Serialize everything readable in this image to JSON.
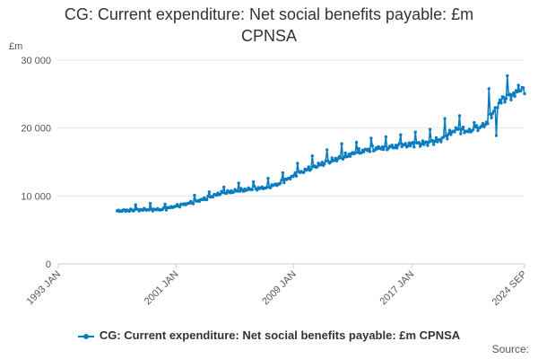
{
  "title_line1": "CG: Current expenditure: Net social benefits payable: £m",
  "title_line2": "CPNSA",
  "source_label": "Source:",
  "colors": {
    "series": "#0a7cc0",
    "grid": "#e6e6e6",
    "axis": "#cccccc"
  },
  "chart_data": {
    "type": "line",
    "ylabel": "£m",
    "ylim": [
      0,
      30000
    ],
    "yticks": [
      {
        "value": 0,
        "label": "0"
      },
      {
        "value": 10000,
        "label": "10 000"
      },
      {
        "value": 20000,
        "label": "20 000"
      },
      {
        "value": 30000,
        "label": "30 000"
      }
    ],
    "xlim": [
      "1993-01",
      "2024-09"
    ],
    "xticks": [
      {
        "value": "1993-01",
        "label": "1993 JAN"
      },
      {
        "value": "2001-01",
        "label": "2001 JAN"
      },
      {
        "value": "2009-01",
        "label": "2009 JAN"
      },
      {
        "value": "2017-01",
        "label": "2017 JAN"
      },
      {
        "value": "2024-09",
        "label": "2024 SEP"
      }
    ],
    "grid": true,
    "legend_position": "bottom",
    "series": [
      {
        "name": "CG: Current expenditure: Net social benefits payable: £m CPNSA",
        "anchors": [
          [
            "1997-01",
            7800
          ],
          [
            "1998-01",
            7900
          ],
          [
            "1999-01",
            8000
          ],
          [
            "2000-01",
            8000
          ],
          [
            "2001-01",
            8500
          ],
          [
            "2002-01",
            9000
          ],
          [
            "2003-01",
            9600
          ],
          [
            "2004-01",
            10400
          ],
          [
            "2005-01",
            10700
          ],
          [
            "2006-01",
            11000
          ],
          [
            "2007-01",
            11200
          ],
          [
            "2008-01",
            11800
          ],
          [
            "2009-01",
            13000
          ],
          [
            "2010-01",
            14000
          ],
          [
            "2011-01",
            14800
          ],
          [
            "2012-01",
            15500
          ],
          [
            "2013-01",
            16200
          ],
          [
            "2014-01",
            16800
          ],
          [
            "2015-01",
            17100
          ],
          [
            "2016-01",
            17300
          ],
          [
            "2017-01",
            17600
          ],
          [
            "2018-01",
            17800
          ],
          [
            "2019-01",
            18300
          ],
          [
            "2020-01",
            19800
          ],
          [
            "2021-01",
            19500
          ],
          [
            "2022-01",
            20500
          ],
          [
            "2023-01",
            24000
          ],
          [
            "2024-01",
            25000
          ],
          [
            "2024-09",
            25800
          ]
        ],
        "spikes": [
          [
            "1998-04",
            8700
          ],
          [
            "1999-04",
            8900
          ],
          [
            "2000-04",
            8800
          ],
          [
            "2002-04",
            10100
          ],
          [
            "2003-04",
            10600
          ],
          [
            "2004-04",
            11300
          ],
          [
            "2005-04",
            11900
          ],
          [
            "2006-04",
            12100
          ],
          [
            "2007-04",
            12600
          ],
          [
            "2008-04",
            13400
          ],
          [
            "2009-04",
            14800
          ],
          [
            "2010-04",
            15900
          ],
          [
            "2011-04",
            16800
          ],
          [
            "2012-04",
            17700
          ],
          [
            "2013-04",
            17900
          ],
          [
            "2014-04",
            18500
          ],
          [
            "2015-04",
            18700
          ],
          [
            "2016-04",
            19000
          ],
          [
            "2017-04",
            19400
          ],
          [
            "2018-04",
            19800
          ],
          [
            "2019-04",
            21400
          ],
          [
            "2020-04",
            21800
          ],
          [
            "2021-04",
            20800
          ],
          [
            "2022-04",
            25800
          ],
          [
            "2022-10",
            18900
          ],
          [
            "2023-07",
            27700
          ],
          [
            "2024-04",
            26300
          ]
        ]
      }
    ]
  }
}
